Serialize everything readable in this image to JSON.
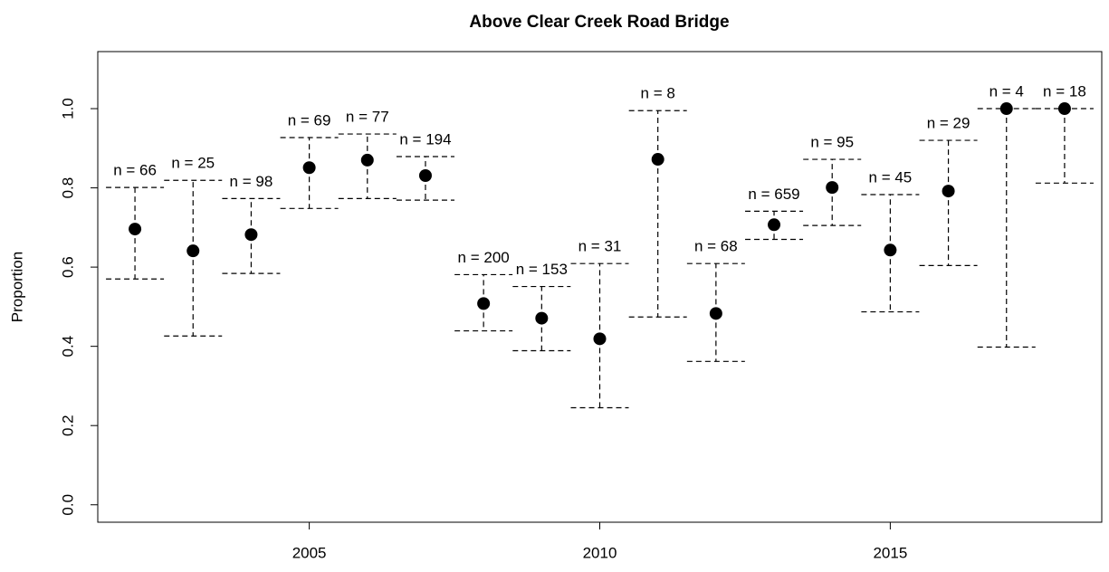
{
  "chart_data": {
    "type": "scatter",
    "title": "Above Clear Creek Road Bridge",
    "y_label": "Proportion",
    "x": [
      2002,
      2003,
      2004,
      2005,
      2006,
      2007,
      2008,
      2009,
      2010,
      2011,
      2012,
      2013,
      2014,
      2015,
      2016,
      2017,
      2018
    ],
    "series": [
      {
        "color": "#000000",
        "values": [
          0.696,
          0.641,
          0.682,
          0.851,
          0.87,
          0.831,
          0.508,
          0.471,
          0.419,
          0.872,
          0.483,
          0.707,
          0.801,
          0.643,
          0.792,
          1.0,
          1.0
        ],
        "lower": [
          0.57,
          0.426,
          0.584,
          0.748,
          0.773,
          0.769,
          0.439,
          0.389,
          0.245,
          0.474,
          0.362,
          0.67,
          0.705,
          0.487,
          0.604,
          0.398,
          0.812
        ],
        "upper": [
          0.801,
          0.819,
          0.773,
          0.927,
          0.936,
          0.879,
          0.581,
          0.551,
          0.609,
          0.995,
          0.609,
          0.741,
          0.872,
          0.783,
          0.92,
          1.0,
          1.0
        ],
        "point_labels": [
          "n = 66",
          "n = 25",
          "n = 98",
          "n = 69",
          "n = 77",
          "n = 194",
          "n = 200",
          "n = 153",
          "n = 31",
          "n = 8",
          "n = 68",
          "n = 659",
          "n = 95",
          "n = 45",
          "n = 29",
          "n = 4",
          "n = 18"
        ]
      }
    ],
    "xlim": [
      2001.36,
      2018.64
    ],
    "xticks": [
      2005,
      2010,
      2015
    ],
    "ylim": [
      -0.044,
      1.144
    ],
    "yticks": [
      {
        "value": 0,
        "label": "0.0"
      },
      0.2,
      0.4,
      0.6,
      0.8,
      {
        "value": 1,
        "label": "1.0"
      }
    ],
    "grid": false
  }
}
